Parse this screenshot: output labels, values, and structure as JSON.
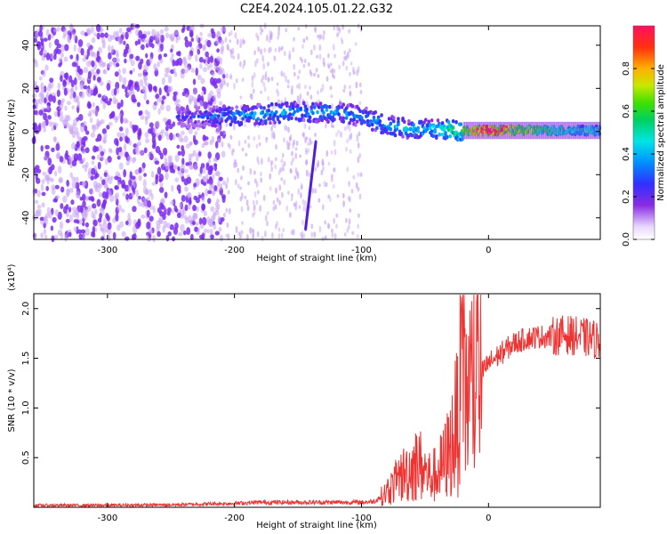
{
  "title": "C2E4.2024.105.01.22.G32",
  "chart_data": [
    {
      "type": "heatmap",
      "xlabel": "Height of straight line (km)",
      "ylabel": "Frequency (Hz)",
      "xlim": [
        -358,
        88
      ],
      "ylim": [
        -50,
        49
      ],
      "x_ticks": [
        -300,
        -200,
        -100,
        0
      ],
      "y_ticks": [
        -40,
        -20,
        0,
        20,
        40
      ],
      "colorbar": {
        "label": "Normalized spectral amplitude",
        "range": [
          0,
          1
        ],
        "ticks": [
          "0.0",
          "0.2",
          "0.4",
          "0.6",
          "0.8"
        ],
        "tick_values": [
          0.0,
          0.2,
          0.4,
          0.6,
          0.8
        ]
      },
      "colors": {
        "noise": "#7b2cf0",
        "low": "#c6a3f2",
        "mid": "#00e0ff",
        "high": "#ff2020"
      },
      "ridge": [
        {
          "x": -240,
          "y": 7,
          "amp": 0.25
        },
        {
          "x": -210,
          "y": 7,
          "amp": 0.35
        },
        {
          "x": -180,
          "y": 8,
          "amp": 0.4
        },
        {
          "x": -150,
          "y": 9,
          "amp": 0.4
        },
        {
          "x": -120,
          "y": 9,
          "amp": 0.38
        },
        {
          "x": -100,
          "y": 7,
          "amp": 0.35
        },
        {
          "x": -80,
          "y": 3,
          "amp": 0.4
        },
        {
          "x": -60,
          "y": 1,
          "amp": 0.42
        },
        {
          "x": -40,
          "y": 1,
          "amp": 0.45
        },
        {
          "x": -20,
          "y": 0.5,
          "amp": 0.6
        },
        {
          "x": 0,
          "y": 0.5,
          "amp": 0.95
        },
        {
          "x": 20,
          "y": 0.5,
          "amp": 0.75
        },
        {
          "x": 50,
          "y": 0.5,
          "amp": 0.5
        },
        {
          "x": 88,
          "y": 0.5,
          "amp": 0.45
        }
      ]
    },
    {
      "type": "line",
      "xlabel": "Height of straight line (km)",
      "ylabel": "SNR (10 * v/v)",
      "y_scale_label": "(x10⁴)",
      "xlim": [
        -358,
        88
      ],
      "ylim": [
        0,
        2.15
      ],
      "x_ticks": [
        -300,
        -200,
        -100,
        0
      ],
      "y_ticks": [
        "0.5",
        "1.0",
        "1.5",
        "2.0"
      ],
      "y_tick_values": [
        0.5,
        1.0,
        1.5,
        2.0
      ],
      "color": "#ee3333",
      "series": [
        {
          "x": [
            -358,
            -300,
            -250,
            -200,
            -180,
            -150,
            -120,
            -100,
            -90,
            -80,
            -70,
            -60,
            -55,
            -50,
            -45,
            -40,
            -35,
            -30,
            -25,
            -22,
            -20,
            -17,
            -12,
            -5,
            0,
            10,
            20,
            30,
            40,
            50,
            60,
            70,
            80,
            88
          ],
          "y": [
            0.02,
            0.02,
            0.025,
            0.04,
            0.05,
            0.05,
            0.05,
            0.05,
            0.06,
            0.15,
            0.3,
            0.4,
            0.45,
            0.35,
            0.3,
            0.35,
            0.45,
            0.6,
            0.85,
            1.2,
            1.4,
            1.1,
            1.3,
            1.35,
            1.45,
            1.55,
            1.65,
            1.7,
            1.72,
            1.72,
            1.74,
            1.72,
            1.7,
            1.68
          ]
        }
      ]
    }
  ]
}
